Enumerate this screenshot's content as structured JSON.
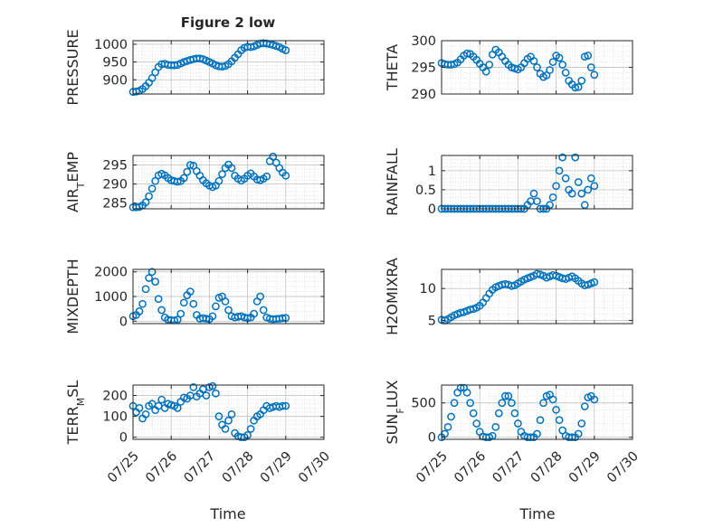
{
  "figure": {
    "title": "Figure 2 low",
    "xlabel": "Time",
    "colors": {
      "marker": "#0072BD",
      "axis": "#262626",
      "grid": "#d9d9d9",
      "background": "#ffffff"
    }
  },
  "x_ticks": [
    "07/25",
    "07/26",
    "07/27",
    "07/28",
    "07/29",
    "07/30"
  ],
  "chart_data": [
    {
      "type": "scatter",
      "ylabel": "PRESSURE",
      "ylim": [
        860,
        1010
      ],
      "yticks": [
        900,
        950,
        1000
      ],
      "ytick_labels": [
        "900",
        "950",
        "1000"
      ],
      "xlim": [
        "07/25",
        "07/30"
      ],
      "grid": true,
      "x": [
        "07/25 00:00",
        "07/25 02:00",
        "07/25 04:00",
        "07/25 06:00",
        "07/25 08:00",
        "07/25 10:00",
        "07/25 12:00",
        "07/25 14:00",
        "07/25 16:00",
        "07/25 18:00",
        "07/25 20:00",
        "07/25 22:00",
        "07/26 00:00",
        "07/26 02:00",
        "07/26 04:00",
        "07/26 06:00",
        "07/26 08:00",
        "07/26 10:00",
        "07/26 12:00",
        "07/26 14:00",
        "07/26 16:00",
        "07/26 18:00",
        "07/26 20:00",
        "07/26 22:00",
        "07/27 00:00",
        "07/27 02:00",
        "07/27 04:00",
        "07/27 06:00",
        "07/27 08:00",
        "07/27 10:00",
        "07/27 12:00",
        "07/27 14:00",
        "07/27 16:00",
        "07/27 18:00",
        "07/27 20:00",
        "07/27 22:00",
        "07/28 00:00",
        "07/28 02:00",
        "07/28 04:00",
        "07/28 06:00",
        "07/28 08:00",
        "07/28 10:00",
        "07/28 12:00",
        "07/28 14:00",
        "07/28 16:00",
        "07/28 18:00",
        "07/28 20:00",
        "07/28 22:00",
        "07/29 00:00"
      ],
      "y": [
        866,
        867,
        869,
        874,
        882,
        892,
        905,
        921,
        936,
        944,
        945,
        942,
        941,
        941,
        942,
        946,
        950,
        953,
        956,
        958,
        960,
        960,
        958,
        954,
        950,
        946,
        941,
        938,
        937,
        939,
        944,
        952,
        962,
        972,
        983,
        990,
        993,
        992,
        994,
        998,
        1002,
        1003,
        1002,
        1000,
        998,
        995,
        992,
        987,
        983
      ]
    },
    {
      "type": "scatter",
      "ylabel": "THETA",
      "ylim": [
        290,
        300
      ],
      "yticks": [
        290,
        295,
        300
      ],
      "ytick_labels": [
        "290",
        "295",
        "300"
      ],
      "xlim": [
        "07/25",
        "07/30"
      ],
      "grid": true,
      "x": [
        "07/25 00:00",
        "07/25 02:00",
        "07/25 04:00",
        "07/25 06:00",
        "07/25 08:00",
        "07/25 10:00",
        "07/25 12:00",
        "07/25 14:00",
        "07/25 16:00",
        "07/25 18:00",
        "07/25 20:00",
        "07/25 22:00",
        "07/26 00:00",
        "07/26 02:00",
        "07/26 04:00",
        "07/26 06:00",
        "07/26 08:00",
        "07/26 10:00",
        "07/26 12:00",
        "07/26 14:00",
        "07/26 16:00",
        "07/26 18:00",
        "07/26 20:00",
        "07/26 22:00",
        "07/27 00:00",
        "07/27 02:00",
        "07/27 04:00",
        "07/27 06:00",
        "07/27 08:00",
        "07/27 10:00",
        "07/27 12:00",
        "07/27 14:00",
        "07/27 16:00",
        "07/27 18:00",
        "07/27 20:00",
        "07/27 22:00",
        "07/28 00:00",
        "07/28 02:00",
        "07/28 04:00",
        "07/28 06:00",
        "07/28 08:00",
        "07/28 10:00",
        "07/28 12:00",
        "07/28 14:00",
        "07/28 16:00",
        "07/28 18:00",
        "07/28 20:00",
        "07/28 22:00",
        "07/29 00:00"
      ],
      "y": [
        295.8,
        295.6,
        295.5,
        295.5,
        295.6,
        295.9,
        296.5,
        297.2,
        297.6,
        297.5,
        297.0,
        296.4,
        295.7,
        295.0,
        294.2,
        295.5,
        297.4,
        298.3,
        297.8,
        297.0,
        296.2,
        295.5,
        295.0,
        294.8,
        294.6,
        295.0,
        295.8,
        296.6,
        297.0,
        296.2,
        295.0,
        293.8,
        293.2,
        293.5,
        294.5,
        296.0,
        297.2,
        296.8,
        295.5,
        294.0,
        292.5,
        291.8,
        291.2,
        291.3,
        292.5,
        297.0,
        297.2,
        295.0,
        293.6
      ]
    },
    {
      "type": "scatter",
      "ylabel": "AIR_TEMP",
      "ylim": [
        283.5,
        297.5
      ],
      "yticks": [
        285,
        290,
        295
      ],
      "ytick_labels": [
        "285",
        "290",
        "295"
      ],
      "xlim": [
        "07/25",
        "07/30"
      ],
      "grid": true,
      "x": [
        "07/25 00:00",
        "07/25 02:00",
        "07/25 04:00",
        "07/25 06:00",
        "07/25 08:00",
        "07/25 10:00",
        "07/25 12:00",
        "07/25 14:00",
        "07/25 16:00",
        "07/25 18:00",
        "07/25 20:00",
        "07/25 22:00",
        "07/26 00:00",
        "07/26 02:00",
        "07/26 04:00",
        "07/26 06:00",
        "07/26 08:00",
        "07/26 10:00",
        "07/26 12:00",
        "07/26 14:00",
        "07/26 16:00",
        "07/26 18:00",
        "07/26 20:00",
        "07/26 22:00",
        "07/27 00:00",
        "07/27 02:00",
        "07/27 04:00",
        "07/27 06:00",
        "07/27 08:00",
        "07/27 10:00",
        "07/27 12:00",
        "07/27 14:00",
        "07/27 16:00",
        "07/27 18:00",
        "07/27 20:00",
        "07/27 22:00",
        "07/28 00:00",
        "07/28 02:00",
        "07/28 04:00",
        "07/28 06:00",
        "07/28 08:00",
        "07/28 10:00",
        "07/28 12:00",
        "07/28 14:00",
        "07/28 16:00",
        "07/28 18:00",
        "07/28 20:00",
        "07/28 22:00",
        "07/29 00:00"
      ],
      "y": [
        283.9,
        283.9,
        284.0,
        284.4,
        285.2,
        286.8,
        288.8,
        290.8,
        292.3,
        292.7,
        292.3,
        291.6,
        291.0,
        290.8,
        290.6,
        290.8,
        291.6,
        293.2,
        295.0,
        294.8,
        293.4,
        292.2,
        291.0,
        290.2,
        289.6,
        289.2,
        289.6,
        290.8,
        292.6,
        294.2,
        295.1,
        294.2,
        292.2,
        291.4,
        290.9,
        291.4,
        292.2,
        292.8,
        292.0,
        291.2,
        291.0,
        291.4,
        292.0,
        296.0,
        297.2,
        295.6,
        294.2,
        293.0,
        292.2
      ]
    },
    {
      "type": "scatter",
      "ylabel": "RAINFALL",
      "ylim": [
        0,
        1.4
      ],
      "yticks": [
        0,
        0.5,
        1
      ],
      "ytick_labels": [
        "0",
        "0.5",
        "1"
      ],
      "xlim": [
        "07/25",
        "07/30"
      ],
      "grid": true,
      "x": [
        "07/25 00:00",
        "07/25 02:00",
        "07/25 04:00",
        "07/25 06:00",
        "07/25 08:00",
        "07/25 10:00",
        "07/25 12:00",
        "07/25 14:00",
        "07/25 16:00",
        "07/25 18:00",
        "07/25 20:00",
        "07/25 22:00",
        "07/26 00:00",
        "07/26 02:00",
        "07/26 04:00",
        "07/26 06:00",
        "07/26 08:00",
        "07/26 10:00",
        "07/26 12:00",
        "07/26 14:00",
        "07/26 16:00",
        "07/26 18:00",
        "07/26 20:00",
        "07/26 22:00",
        "07/27 00:00",
        "07/27 02:00",
        "07/27 04:00",
        "07/27 06:00",
        "07/27 08:00",
        "07/27 10:00",
        "07/27 12:00",
        "07/27 14:00",
        "07/27 16:00",
        "07/27 18:00",
        "07/27 20:00",
        "07/27 22:00",
        "07/28 00:00",
        "07/28 02:00",
        "07/28 04:00",
        "07/28 06:00",
        "07/28 08:00",
        "07/28 10:00",
        "07/28 12:00",
        "07/28 14:00",
        "07/28 16:00",
        "07/28 18:00",
        "07/28 20:00",
        "07/28 22:00",
        "07/29 00:00"
      ],
      "y": [
        0,
        0,
        0,
        0,
        0,
        0,
        0,
        0,
        0,
        0,
        0,
        0,
        0,
        0,
        0,
        0,
        0,
        0,
        0,
        0,
        0,
        0,
        0,
        0,
        0,
        0,
        0,
        0.1,
        0.2,
        0.4,
        0.2,
        0,
        0,
        0,
        0.1,
        0.3,
        0.6,
        1.0,
        1.35,
        0.8,
        0.5,
        0.4,
        1.35,
        0.7,
        0.4,
        0.1,
        0.5,
        0.8,
        0.6
      ]
    },
    {
      "type": "scatter",
      "ylabel": "MIXDEPTH",
      "ylim": [
        -100,
        2100
      ],
      "yticks": [
        0,
        1000,
        2000
      ],
      "ytick_labels": [
        "0",
        "1000",
        "2000"
      ],
      "xlim": [
        "07/25",
        "07/30"
      ],
      "grid": true,
      "x": [
        "07/25 00:00",
        "07/25 02:00",
        "07/25 04:00",
        "07/25 06:00",
        "07/25 08:00",
        "07/25 10:00",
        "07/25 12:00",
        "07/25 14:00",
        "07/25 16:00",
        "07/25 18:00",
        "07/25 20:00",
        "07/25 22:00",
        "07/26 00:00",
        "07/26 02:00",
        "07/26 04:00",
        "07/26 06:00",
        "07/26 08:00",
        "07/26 10:00",
        "07/26 12:00",
        "07/26 14:00",
        "07/26 16:00",
        "07/26 18:00",
        "07/26 20:00",
        "07/26 22:00",
        "07/27 00:00",
        "07/27 02:00",
        "07/27 04:00",
        "07/27 06:00",
        "07/27 08:00",
        "07/27 10:00",
        "07/27 12:00",
        "07/27 14:00",
        "07/27 16:00",
        "07/27 18:00",
        "07/27 20:00",
        "07/27 22:00",
        "07/28 00:00",
        "07/28 02:00",
        "07/28 04:00",
        "07/28 06:00",
        "07/28 08:00",
        "07/28 10:00",
        "07/28 12:00",
        "07/28 14:00",
        "07/28 16:00",
        "07/28 18:00",
        "07/28 20:00",
        "07/28 22:00",
        "07/29 00:00"
      ],
      "y": [
        200,
        250,
        400,
        700,
        1300,
        1750,
        2000,
        1600,
        900,
        450,
        150,
        60,
        40,
        30,
        60,
        300,
        750,
        1050,
        1200,
        700,
        250,
        100,
        120,
        100,
        80,
        200,
        600,
        950,
        1000,
        800,
        450,
        200,
        150,
        180,
        200,
        150,
        120,
        150,
        300,
        800,
        1000,
        450,
        150,
        100,
        80,
        90,
        100,
        120,
        130
      ]
    },
    {
      "type": "scatter",
      "ylabel": "H2OMIXRA",
      "ylim": [
        4.5,
        13
      ],
      "yticks": [
        5,
        10
      ],
      "ytick_labels": [
        "5",
        "10"
      ],
      "xlim": [
        "07/25",
        "07/30"
      ],
      "grid": true,
      "x": [
        "07/25 00:00",
        "07/25 02:00",
        "07/25 04:00",
        "07/25 06:00",
        "07/25 08:00",
        "07/25 10:00",
        "07/25 12:00",
        "07/25 14:00",
        "07/25 16:00",
        "07/25 18:00",
        "07/25 20:00",
        "07/25 22:00",
        "07/26 00:00",
        "07/26 02:00",
        "07/26 04:00",
        "07/26 06:00",
        "07/26 08:00",
        "07/26 10:00",
        "07/26 12:00",
        "07/26 14:00",
        "07/26 16:00",
        "07/26 18:00",
        "07/26 20:00",
        "07/26 22:00",
        "07/27 00:00",
        "07/27 02:00",
        "07/27 04:00",
        "07/27 06:00",
        "07/27 08:00",
        "07/27 10:00",
        "07/27 12:00",
        "07/27 14:00",
        "07/27 16:00",
        "07/27 18:00",
        "07/27 20:00",
        "07/27 22:00",
        "07/28 00:00",
        "07/28 02:00",
        "07/28 04:00",
        "07/28 06:00",
        "07/28 08:00",
        "07/28 10:00",
        "07/28 12:00",
        "07/28 14:00",
        "07/28 16:00",
        "07/28 18:00",
        "07/28 20:00",
        "07/28 22:00",
        "07/29 00:00"
      ],
      "y": [
        5.1,
        5.0,
        5.2,
        5.5,
        5.8,
        6.0,
        6.2,
        6.3,
        6.5,
        6.7,
        6.8,
        7.0,
        7.3,
        7.8,
        8.5,
        9.2,
        9.8,
        10.2,
        10.4,
        10.6,
        10.7,
        10.6,
        10.4,
        10.5,
        10.8,
        11.1,
        11.4,
        11.6,
        11.8,
        12.0,
        12.3,
        12.2,
        12.0,
        11.7,
        11.9,
        12.1,
        12.0,
        11.8,
        11.6,
        11.5,
        11.7,
        11.9,
        11.6,
        11.2,
        10.8,
        10.5,
        10.6,
        10.8,
        11.0
      ]
    },
    {
      "type": "scatter",
      "ylabel": "TERR_MSL",
      "ylim": [
        -10,
        250
      ],
      "yticks": [
        0,
        100,
        200
      ],
      "ytick_labels": [
        "0",
        "100",
        "200"
      ],
      "xlim": [
        "07/25",
        "07/30"
      ],
      "grid": true,
      "x": [
        "07/25 00:00",
        "07/25 02:00",
        "07/25 04:00",
        "07/25 06:00",
        "07/25 08:00",
        "07/25 10:00",
        "07/25 12:00",
        "07/25 14:00",
        "07/25 16:00",
        "07/25 18:00",
        "07/25 20:00",
        "07/25 22:00",
        "07/26 00:00",
        "07/26 02:00",
        "07/26 04:00",
        "07/26 06:00",
        "07/26 08:00",
        "07/26 10:00",
        "07/26 12:00",
        "07/26 14:00",
        "07/26 16:00",
        "07/26 18:00",
        "07/26 20:00",
        "07/26 22:00",
        "07/27 00:00",
        "07/27 02:00",
        "07/27 04:00",
        "07/27 06:00",
        "07/27 08:00",
        "07/27 10:00",
        "07/27 12:00",
        "07/27 14:00",
        "07/27 16:00",
        "07/27 18:00",
        "07/27 20:00",
        "07/27 22:00",
        "07/28 00:00",
        "07/28 02:00",
        "07/28 04:00",
        "07/28 06:00",
        "07/28 08:00",
        "07/28 10:00",
        "07/28 12:00",
        "07/28 14:00",
        "07/28 16:00",
        "07/28 18:00",
        "07/28 20:00",
        "07/28 22:00",
        "07/29 00:00"
      ],
      "y": [
        150,
        120,
        140,
        90,
        110,
        150,
        160,
        130,
        150,
        180,
        140,
        160,
        155,
        150,
        140,
        170,
        190,
        185,
        200,
        240,
        195,
        210,
        230,
        200,
        240,
        245,
        210,
        100,
        60,
        40,
        80,
        110,
        20,
        5,
        0,
        0,
        10,
        40,
        80,
        100,
        110,
        130,
        150,
        140,
        145,
        150,
        145,
        150,
        150
      ]
    },
    {
      "type": "scatter",
      "ylabel": "SUN_FLUX",
      "ylim": [
        -30,
        760
      ],
      "yticks": [
        0,
        500
      ],
      "ytick_labels": [
        "0",
        "500"
      ],
      "xlim": [
        "07/25",
        "07/30"
      ],
      "grid": true,
      "x": [
        "07/25 00:00",
        "07/25 02:00",
        "07/25 04:00",
        "07/25 06:00",
        "07/25 08:00",
        "07/25 10:00",
        "07/25 12:00",
        "07/25 14:00",
        "07/25 16:00",
        "07/25 18:00",
        "07/25 20:00",
        "07/25 22:00",
        "07/26 00:00",
        "07/26 02:00",
        "07/26 04:00",
        "07/26 06:00",
        "07/26 08:00",
        "07/26 10:00",
        "07/26 12:00",
        "07/26 14:00",
        "07/26 16:00",
        "07/26 18:00",
        "07/26 20:00",
        "07/26 22:00",
        "07/27 00:00",
        "07/27 02:00",
        "07/27 04:00",
        "07/27 06:00",
        "07/27 08:00",
        "07/27 10:00",
        "07/27 12:00",
        "07/27 14:00",
        "07/27 16:00",
        "07/27 18:00",
        "07/27 20:00",
        "07/27 22:00",
        "07/28 00:00",
        "07/28 02:00",
        "07/28 04:00",
        "07/28 06:00",
        "07/28 08:00",
        "07/28 10:00",
        "07/28 12:00",
        "07/28 14:00",
        "07/28 16:00",
        "07/28 18:00",
        "07/28 20:00",
        "07/28 22:00",
        "07/29 00:00"
      ],
      "y": [
        0,
        50,
        150,
        300,
        500,
        650,
        720,
        720,
        650,
        500,
        350,
        200,
        80,
        10,
        0,
        0,
        20,
        150,
        350,
        500,
        600,
        600,
        500,
        350,
        200,
        80,
        20,
        0,
        0,
        0,
        50,
        250,
        500,
        600,
        620,
        550,
        400,
        250,
        100,
        20,
        0,
        0,
        0,
        50,
        200,
        450,
        580,
        600,
        550
      ]
    }
  ]
}
